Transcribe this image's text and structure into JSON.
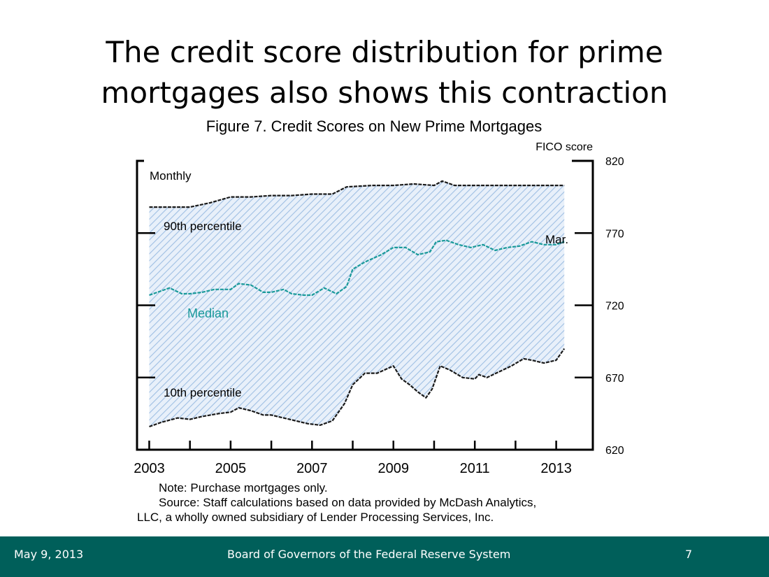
{
  "slide": {
    "title_line1": "The credit score distribution for prime",
    "title_line2": "mortgages also shows this contraction"
  },
  "chart_data": {
    "type": "line",
    "title": "Figure 7.  Credit Scores on New Prime Mortgages",
    "ylabel": "FICO score",
    "frequency_label": "Monthly",
    "ylim": [
      620,
      820
    ],
    "xlim": [
      2002.7,
      2013.9
    ],
    "y_ticks": [
      620,
      670,
      720,
      770,
      820
    ],
    "x_ticks": [
      2003,
      2005,
      2007,
      2009,
      2011,
      2013
    ],
    "end_label": "Mar.",
    "band_between": [
      "10th percentile",
      "90th percentile"
    ],
    "band_color": "#a9c7e8",
    "median_color": "#1a9a9a",
    "series": [
      {
        "name": "90th percentile",
        "x": [
          2003.0,
          2003.5,
          2004.0,
          2004.5,
          2005.0,
          2005.5,
          2006.0,
          2006.5,
          2007.0,
          2007.5,
          2007.85,
          2008.5,
          2009.0,
          2009.5,
          2010.0,
          2010.2,
          2010.5,
          2011.0,
          2011.5,
          2012.0,
          2012.5,
          2013.0,
          2013.2
        ],
        "y": [
          788,
          788,
          788,
          791,
          795,
          795,
          796,
          796,
          797,
          797,
          802,
          803,
          803,
          804,
          803,
          806,
          803,
          803,
          803,
          803,
          803,
          803,
          803
        ]
      },
      {
        "name": "Median",
        "x": [
          2003.0,
          2003.2,
          2003.5,
          2003.8,
          2004.0,
          2004.3,
          2004.6,
          2005.0,
          2005.2,
          2005.5,
          2005.8,
          2006.0,
          2006.3,
          2006.5,
          2006.8,
          2007.0,
          2007.3,
          2007.6,
          2007.85,
          2008.0,
          2008.3,
          2008.7,
          2009.0,
          2009.3,
          2009.6,
          2009.9,
          2010.05,
          2010.3,
          2010.6,
          2010.9,
          2011.2,
          2011.5,
          2011.8,
          2012.1,
          2012.4,
          2012.7,
          2013.0,
          2013.2
        ],
        "y": [
          727,
          729,
          732,
          728,
          728,
          729,
          731,
          731,
          735,
          734,
          729,
          729,
          731,
          728,
          727,
          727,
          732,
          728,
          733,
          745,
          750,
          755,
          760,
          760,
          755,
          757,
          764,
          765,
          762,
          760,
          762,
          758,
          760,
          761,
          764,
          762,
          762,
          764
        ]
      },
      {
        "name": "10th percentile",
        "x": [
          2003.0,
          2003.3,
          2003.7,
          2004.0,
          2004.3,
          2004.7,
          2005.0,
          2005.2,
          2005.5,
          2005.8,
          2006.0,
          2006.3,
          2006.6,
          2006.9,
          2007.2,
          2007.5,
          2007.8,
          2008.0,
          2008.3,
          2008.6,
          2009.0,
          2009.2,
          2009.4,
          2009.6,
          2009.8,
          2009.95,
          2010.15,
          2010.4,
          2010.7,
          2011.0,
          2011.1,
          2011.3,
          2011.6,
          2011.9,
          2012.2,
          2012.4,
          2012.7,
          2013.0,
          2013.2
        ],
        "y": [
          636,
          639,
          642,
          641,
          643,
          645,
          646,
          649,
          647,
          644,
          644,
          642,
          640,
          638,
          637,
          640,
          652,
          665,
          673,
          673,
          678,
          669,
          665,
          660,
          656,
          662,
          678,
          675,
          670,
          669,
          672,
          670,
          674,
          678,
          683,
          682,
          680,
          682,
          690
        ]
      }
    ]
  },
  "note": {
    "line1": "Note:  Purchase mortgages only.",
    "line2": "Source:  Staff calculations based on data provided by McDash Analytics,",
    "line3": "LLC, a wholly owned subsidiary of Lender Processing Services, Inc."
  },
  "footer": {
    "date": "May 9, 2013",
    "org": "Board of Governors of the Federal Reserve System",
    "page": "7"
  }
}
